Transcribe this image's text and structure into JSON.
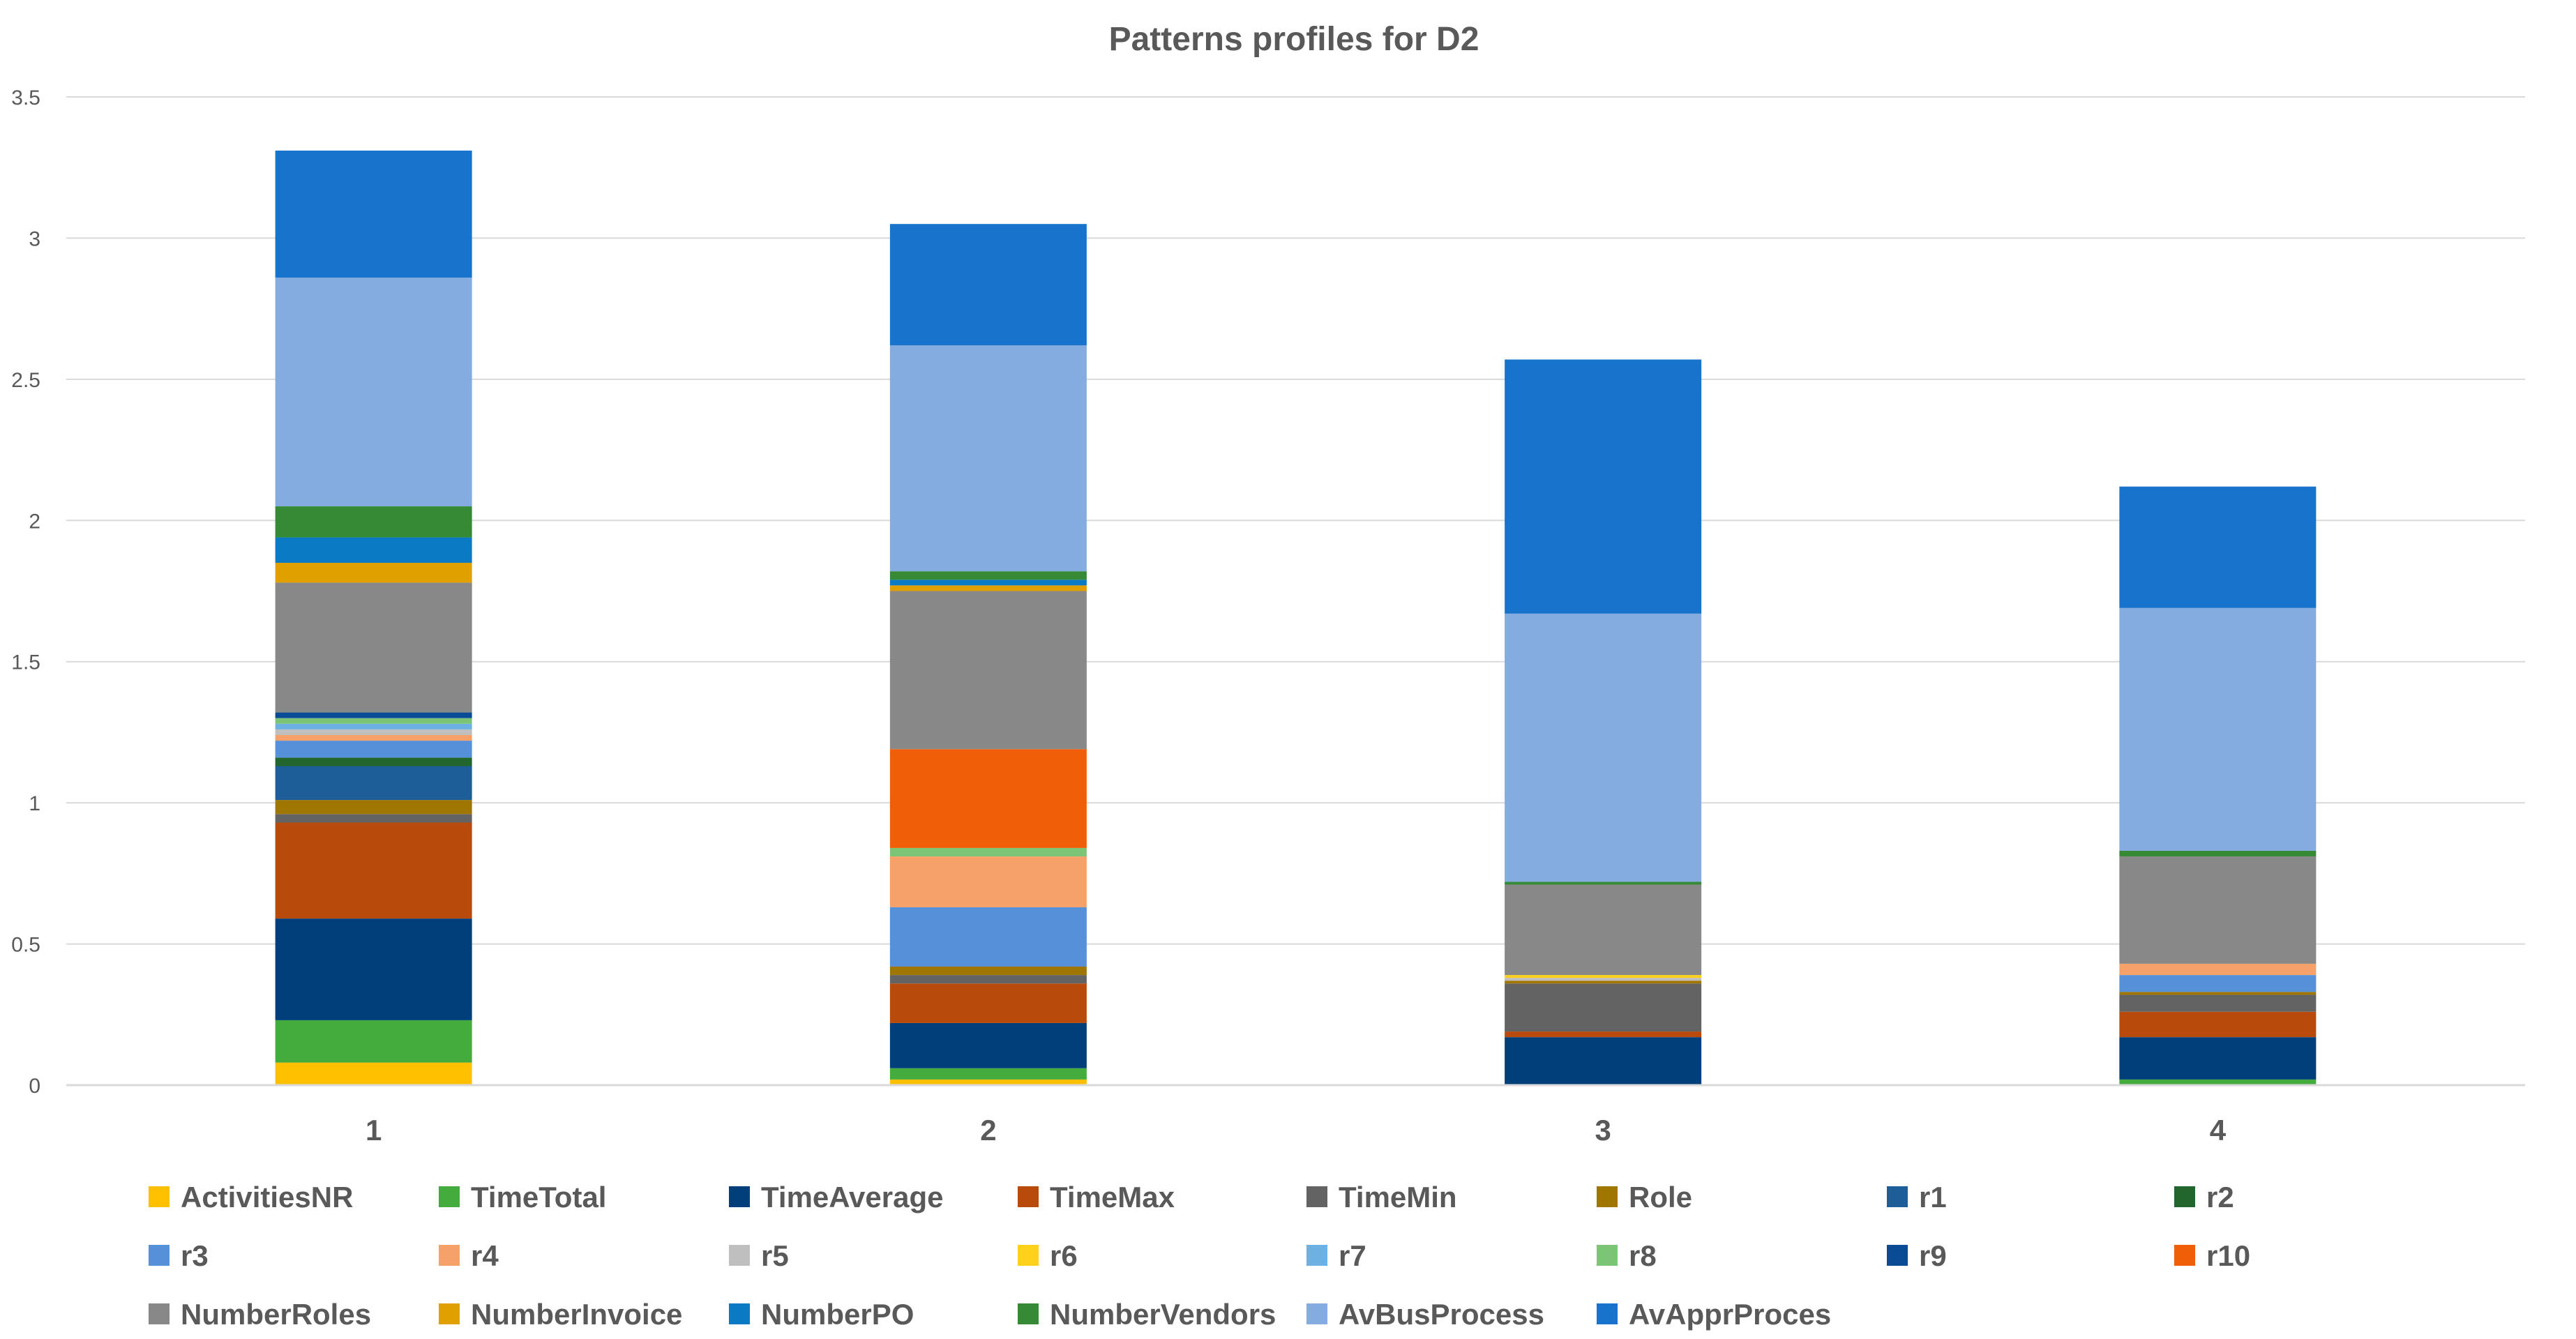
{
  "chart_data": {
    "type": "bar",
    "stacked": true,
    "title": "Patterns profiles for D2",
    "xlabel": "",
    "ylabel": "",
    "ylim": [
      0,
      3.5
    ],
    "yticks": [
      0,
      0.5,
      1,
      1.5,
      2,
      2.5,
      3,
      3.5
    ],
    "ytick_labels": [
      "0",
      "0.5",
      "1",
      "1.5",
      "2",
      "2.5",
      "3",
      "3.5"
    ],
    "grid": true,
    "legend_position": "bottom",
    "categories": [
      "1",
      "2",
      "3",
      "4"
    ],
    "series": [
      {
        "name": "ActivitiesNR",
        "color": "#FFC000",
        "values": [
          0.08,
          0.02,
          0.0,
          0.0
        ]
      },
      {
        "name": "TimeTotal",
        "color": "#43AC3C",
        "values": [
          0.15,
          0.04,
          0.0,
          0.02
        ]
      },
      {
        "name": "TimeAverage",
        "color": "#003F7A",
        "values": [
          0.36,
          0.16,
          0.17,
          0.15
        ]
      },
      {
        "name": "TimeMax",
        "color": "#B84A0B",
        "values": [
          0.34,
          0.14,
          0.02,
          0.09
        ]
      },
      {
        "name": "TimeMin",
        "color": "#636363",
        "values": [
          0.03,
          0.03,
          0.17,
          0.06
        ]
      },
      {
        "name": "Role",
        "color": "#9E7600",
        "values": [
          0.05,
          0.03,
          0.01,
          0.01
        ]
      },
      {
        "name": "r1",
        "color": "#1D5E99",
        "values": [
          0.12,
          0.0,
          0.0,
          0.0
        ]
      },
      {
        "name": "r2",
        "color": "#22662D",
        "values": [
          0.03,
          0.0,
          0.0,
          0.0
        ]
      },
      {
        "name": "r3",
        "color": "#5590D9",
        "values": [
          0.06,
          0.21,
          0.0,
          0.06
        ]
      },
      {
        "name": "r4",
        "color": "#F6A06A",
        "values": [
          0.02,
          0.18,
          0.0,
          0.04
        ]
      },
      {
        "name": "r5",
        "color": "#BFBFBF",
        "values": [
          0.02,
          0.0,
          0.01,
          0.0
        ]
      },
      {
        "name": "r6",
        "color": "#FFD11A",
        "values": [
          0.0,
          0.0,
          0.01,
          0.0
        ]
      },
      {
        "name": "r7",
        "color": "#6DB1E3",
        "values": [
          0.02,
          0.0,
          0.0,
          0.0
        ]
      },
      {
        "name": "r8",
        "color": "#7CC576",
        "values": [
          0.02,
          0.03,
          0.0,
          0.0
        ]
      },
      {
        "name": "r9",
        "color": "#0A4B96",
        "values": [
          0.02,
          0.0,
          0.0,
          0.0
        ]
      },
      {
        "name": "r10",
        "color": "#F05F08",
        "values": [
          0.0,
          0.35,
          0.0,
          0.0
        ]
      },
      {
        "name": "NumberRoles",
        "color": "#888888",
        "values": [
          0.46,
          0.56,
          0.32,
          0.38
        ]
      },
      {
        "name": "NumberInvoice",
        "color": "#E0A000",
        "values": [
          0.07,
          0.02,
          0.0,
          0.0
        ]
      },
      {
        "name": "NumberPO",
        "color": "#0A7AC4",
        "values": [
          0.09,
          0.02,
          0.0,
          0.0
        ]
      },
      {
        "name": "NumberVendors",
        "color": "#378A35",
        "values": [
          0.11,
          0.03,
          0.01,
          0.02
        ]
      },
      {
        "name": "AvBusProcess",
        "color": "#85ACE0",
        "values": [
          0.81,
          0.8,
          0.95,
          0.86
        ]
      },
      {
        "name": "AvApprProces",
        "color": "#1873CC",
        "values": [
          0.45,
          0.43,
          0.9,
          0.43
        ]
      }
    ]
  }
}
